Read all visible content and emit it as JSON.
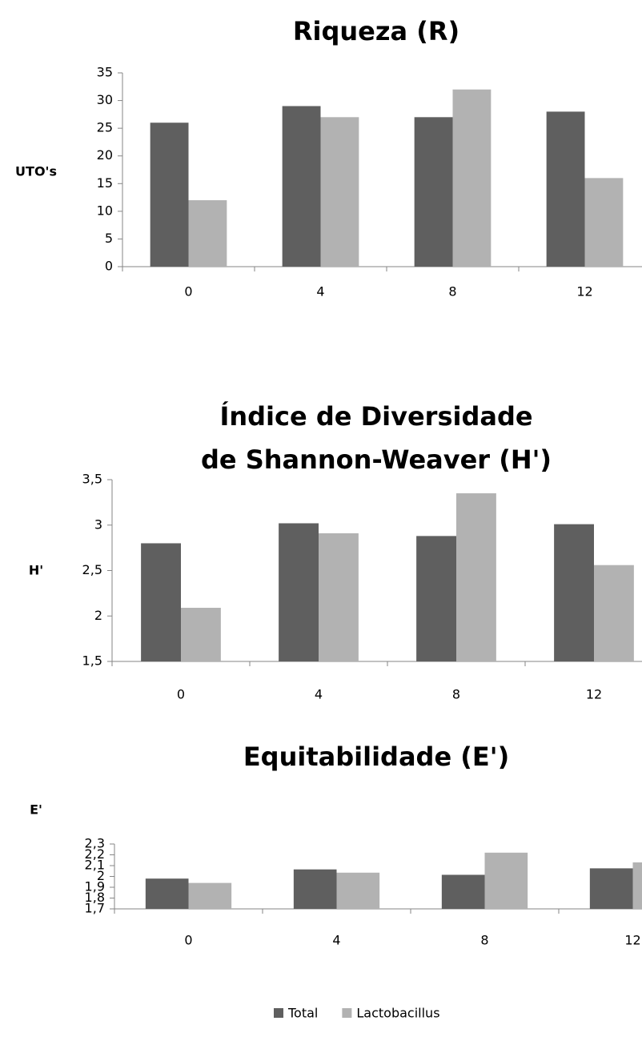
{
  "chart_data": [
    {
      "type": "bar",
      "title": "Riqueza (R)",
      "y_label": "UTO's",
      "categories": [
        "0",
        "4",
        "8",
        "12"
      ],
      "series": [
        {
          "name": "Total",
          "color": "#5f5f5f",
          "values": [
            26,
            29,
            27,
            28
          ]
        },
        {
          "name": "Lactobacillus",
          "color": "#b2b2b2",
          "values": [
            12,
            27,
            32,
            16
          ]
        }
      ],
      "ylim": [
        0,
        35
      ],
      "yticks": [
        0,
        5,
        10,
        15,
        20,
        25,
        30,
        35
      ],
      "grid": false
    },
    {
      "type": "bar",
      "title": "Índice de Diversidade de Shannon-Weaver (H')",
      "y_label": "H'",
      "categories": [
        "0",
        "4",
        "8",
        "12"
      ],
      "series": [
        {
          "name": "Total",
          "color": "#5f5f5f",
          "values": [
            2.8,
            3.02,
            2.88,
            3.01
          ]
        },
        {
          "name": "Lactobacillus",
          "color": "#b2b2b2",
          "values": [
            2.09,
            2.91,
            3.35,
            2.56
          ]
        }
      ],
      "ylim": [
        1.5,
        3.5
      ],
      "yticks": [
        {
          "value": 1.5,
          "label": "1,5"
        },
        2,
        {
          "value": 2.5,
          "label": "2,5"
        },
        3,
        {
          "value": 3.5,
          "label": "3,5"
        }
      ],
      "grid": false
    },
    {
      "type": "bar",
      "title": "Equitabilidade (E')",
      "y_label": "E'",
      "categories": [
        "0",
        "4",
        "8",
        "12"
      ],
      "series": [
        {
          "name": "Total",
          "color": "#5f5f5f",
          "values": [
            1.98,
            2.065,
            2.015,
            2.075
          ]
        },
        {
          "name": "Lactobacillus",
          "color": "#b2b2b2",
          "values": [
            1.94,
            2.035,
            2.22,
            2.13
          ]
        }
      ],
      "ylim": [
        1.7,
        2.3
      ],
      "yticks": [
        {
          "value": 1.7,
          "label": "1,7"
        },
        {
          "value": 1.8,
          "label": "1,8"
        },
        {
          "value": 1.9,
          "label": "1,9"
        },
        2,
        {
          "value": 2.1,
          "label": "2,1"
        },
        {
          "value": 2.2,
          "label": "2,2"
        },
        {
          "value": 2.3,
          "label": "2,3"
        }
      ],
      "grid": false
    }
  ]
}
